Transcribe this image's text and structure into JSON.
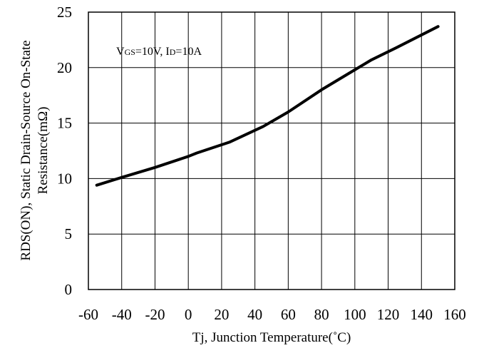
{
  "chart_data": {
    "type": "line",
    "title": "",
    "xlabel": "Tj, Junction Temperature(˚C)",
    "ylabel_line1": "RDS(ON), Static Drain-Source On-State",
    "ylabel_line2": "Resistance(mΩ)",
    "xlim": [
      -60,
      160
    ],
    "ylim": [
      0,
      25
    ],
    "x_ticks": [
      -60,
      -40,
      -20,
      0,
      20,
      40,
      60,
      80,
      100,
      120,
      140,
      160
    ],
    "y_ticks": [
      0,
      5,
      10,
      15,
      20,
      25
    ],
    "grid": true,
    "annotation": {
      "v": "V",
      "gs": "GS",
      "mid": "=10V, I",
      "d": "D",
      "end": "=10A"
    },
    "series": [
      {
        "x": [
          -55,
          -40,
          -20,
          0,
          5,
          25,
          45,
          60,
          80,
          100,
          110,
          125,
          150
        ],
        "y": [
          9.4,
          10.1,
          11.0,
          12.0,
          12.3,
          13.3,
          14.7,
          16.0,
          18.0,
          19.8,
          20.7,
          21.8,
          23.7
        ]
      }
    ]
  }
}
